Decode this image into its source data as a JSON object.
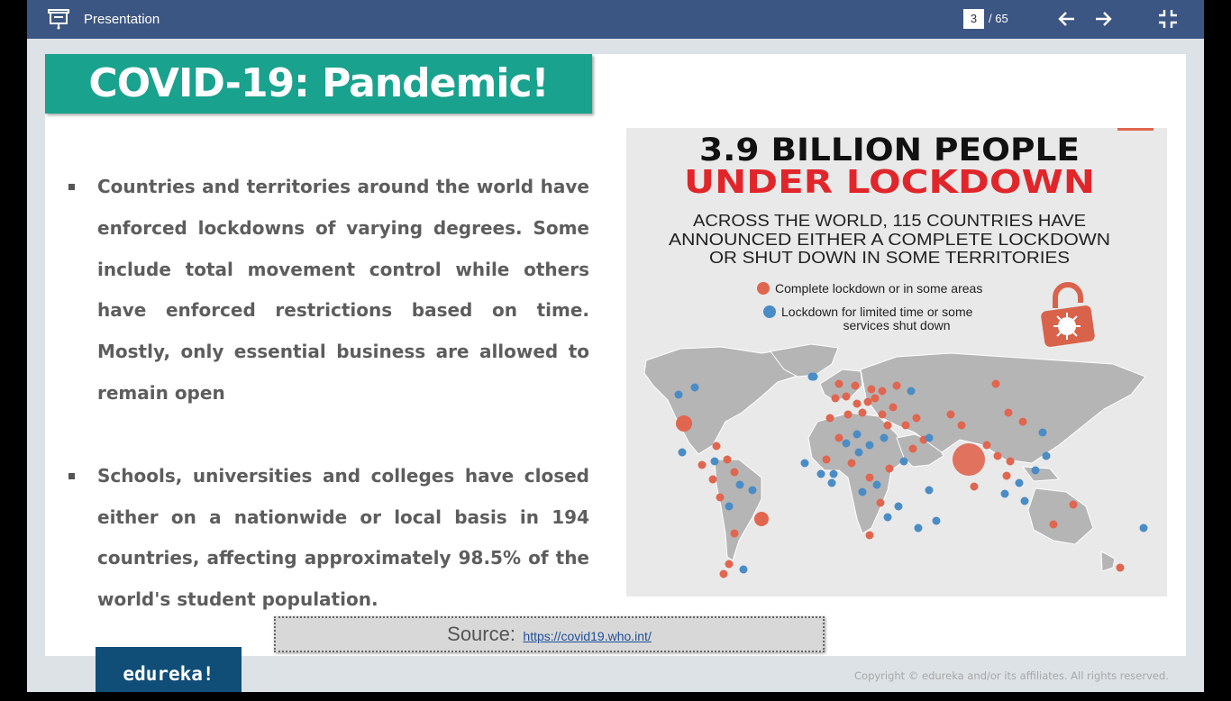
{
  "app": {
    "title": "Presentation",
    "current_page": "3",
    "total_pages": "/ 65"
  },
  "slide": {
    "title": "COVID-19: Pandemic!",
    "bullets": [
      "Countries and territories around the world have enforced lockdowns of varying degrees. Some include total movement control while others have enforced restrictions based on time. Mostly, only essential business are allowed to remain open",
      "Schools, universities and colleges have closed either on a nationwide or local basis in 194 countries, affecting approximately 98.5% of the world's student population."
    ],
    "infographic": {
      "headline_1": "3.9 BILLION PEOPLE",
      "headline_2": "UNDER LOCKDOWN",
      "subtitle_1": "ACROSS THE WORLD, 115 COUNTRIES HAVE",
      "subtitle_2": "ANNOUNCED EITHER A COMPLETE LOCKDOWN",
      "subtitle_3": "OR SHUT DOWN IN SOME TERRITORIES",
      "legend_complete": "Complete lockdown or in some areas",
      "legend_limited_1": "Lockdown for limited time or some",
      "legend_limited_2": "services shut down",
      "colors": {
        "complete": "#e0664f",
        "limited": "#4a8cc6",
        "land": "#b5b5b5",
        "headline_red": "#e0262b"
      }
    },
    "source_label": "Source:",
    "source_link": "https://covid19.who.int/",
    "logo": "edureka!",
    "copyright": "Copyright © edureka and/or its affiliates. All rights reserved."
  },
  "icons": {
    "presentation": "presentation-icon",
    "prev": "arrow-left-icon",
    "next": "arrow-right-icon",
    "fullscreen": "exit-fullscreen-icon"
  }
}
